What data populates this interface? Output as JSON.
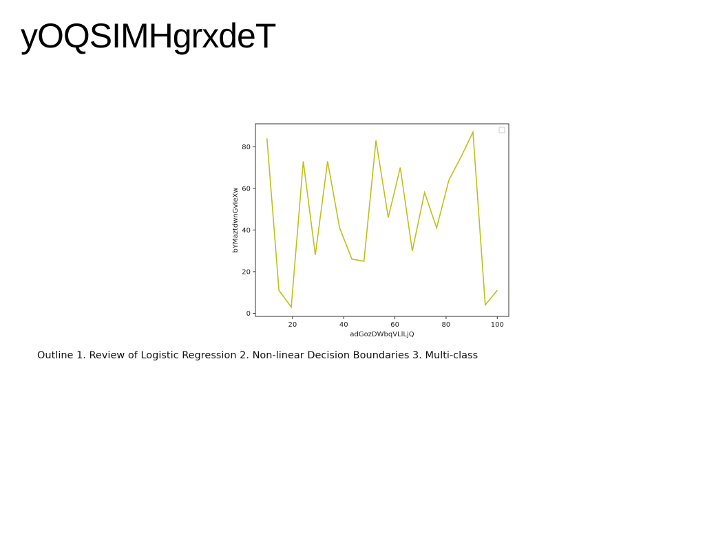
{
  "page": {
    "title": "yOQSIMHgrxdeT",
    "caption": "Outline 1. Review of Logistic Regression 2. Non-linear Decision Boundaries 3. Multi-class"
  },
  "chart_data": {
    "type": "line",
    "title": "",
    "xlabel": "adGozDWbqVLlLjQ",
    "ylabel": "bYMaztdwnGvIeXw",
    "xlim": [
      5.5,
      104.5
    ],
    "ylim": [
      -1.5,
      91
    ],
    "xticks": [
      20,
      40,
      60,
      80,
      100
    ],
    "yticks": [
      0,
      20,
      40,
      60,
      80
    ],
    "grid": false,
    "legend": "top-right",
    "color": "#bfbf1a",
    "series": [
      {
        "x": [
          10,
          14.7,
          19.5,
          24.2,
          28.9,
          33.7,
          38.4,
          43.2,
          47.9,
          52.6,
          57.4,
          62.1,
          66.8,
          71.6,
          76.3,
          81.1,
          85.8,
          90.5,
          95.3,
          100
        ],
        "values": [
          84,
          11,
          3,
          73,
          28,
          73,
          41,
          26,
          25,
          83,
          46,
          70,
          30,
          58,
          41,
          64,
          75,
          87,
          4,
          11
        ]
      }
    ]
  }
}
